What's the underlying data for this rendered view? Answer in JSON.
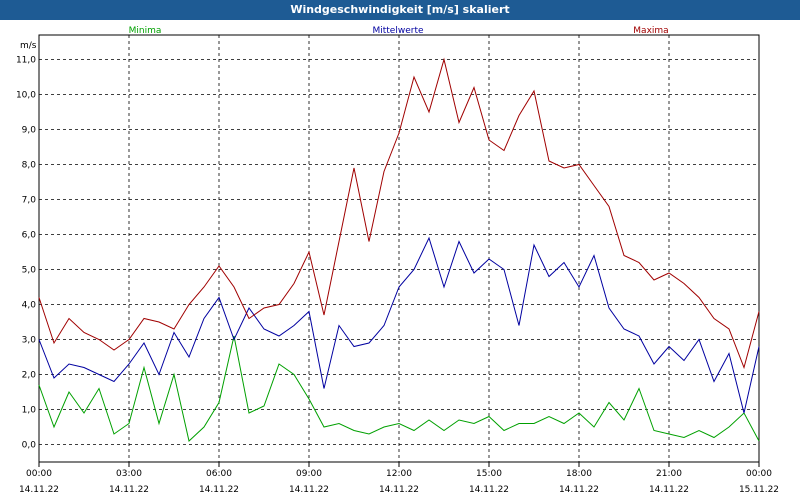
{
  "window": {
    "title": "Windgeschwindigkeit [m/s] skaliert"
  },
  "chart_data": {
    "type": "line",
    "title": "Windgeschwindigkeit [m/s] skaliert",
    "ylabel": "m/s",
    "ylim": [
      -0.5,
      11.7
    ],
    "yticks": [
      "0,0",
      "1,0",
      "2,0",
      "3,0",
      "4,0",
      "5,0",
      "6,0",
      "7,0",
      "8,0",
      "9,0",
      "10,0",
      "11,0"
    ],
    "xticks": [
      {
        "time": "00:00",
        "date": "14.11.22"
      },
      {
        "time": "03:00",
        "date": "14.11.22"
      },
      {
        "time": "06:00",
        "date": "14.11.22"
      },
      {
        "time": "09:00",
        "date": "14.11.22"
      },
      {
        "time": "12:00",
        "date": "14.11.22"
      },
      {
        "time": "15:00",
        "date": "14.11.22"
      },
      {
        "time": "18:00",
        "date": "14.11.22"
      },
      {
        "time": "21:00",
        "date": "14.11.22"
      },
      {
        "time": "00:00",
        "date": "15.11.22"
      }
    ],
    "grid": true,
    "legend_position": "top",
    "x_hours": [
      0,
      0.5,
      1,
      1.5,
      2,
      2.5,
      3,
      3.5,
      4,
      4.5,
      5,
      5.5,
      6,
      6.5,
      7,
      7.5,
      8,
      8.5,
      9,
      9.5,
      10,
      10.5,
      11,
      11.5,
      12,
      12.5,
      13,
      13.5,
      14,
      14.5,
      15,
      15.5,
      16,
      16.5,
      17,
      17.5,
      18,
      18.5,
      19,
      19.5,
      20,
      20.5,
      21,
      21.5,
      22,
      22.5,
      23,
      23.5,
      24
    ],
    "series": [
      {
        "name": "Minima",
        "color": "#00a000",
        "values": [
          1.7,
          0.5,
          1.5,
          0.9,
          1.6,
          0.3,
          0.6,
          2.2,
          0.6,
          2.0,
          0.1,
          0.5,
          1.2,
          3.1,
          0.9,
          1.1,
          2.3,
          2.0,
          1.3,
          0.5,
          0.6,
          0.4,
          0.3,
          0.5,
          0.6,
          0.4,
          0.7,
          0.4,
          0.7,
          0.6,
          0.8,
          0.4,
          0.6,
          0.6,
          0.8,
          0.6,
          0.9,
          0.5,
          1.2,
          0.7,
          1.6,
          0.4,
          0.3,
          0.2,
          0.4,
          0.2,
          0.5,
          0.9,
          0.1
        ]
      },
      {
        "name": "Mittelwerte",
        "color": "#0000a0",
        "values": [
          3.0,
          1.9,
          2.3,
          2.2,
          2.0,
          1.8,
          2.3,
          2.9,
          2.0,
          3.2,
          2.5,
          3.6,
          4.2,
          3.0,
          3.9,
          3.3,
          3.1,
          3.4,
          3.8,
          1.6,
          3.4,
          2.8,
          2.9,
          3.4,
          4.5,
          5.0,
          5.9,
          4.5,
          5.8,
          4.9,
          5.3,
          5.0,
          3.4,
          5.7,
          4.8,
          5.2,
          4.5,
          5.4,
          3.9,
          3.3,
          3.1,
          2.3,
          2.8,
          2.4,
          3.0,
          1.8,
          2.6,
          0.9,
          2.8
        ]
      },
      {
        "name": "Maxima",
        "color": "#a00000",
        "values": [
          4.2,
          2.9,
          3.6,
          3.2,
          3.0,
          2.7,
          3.0,
          3.6,
          3.5,
          3.3,
          4.0,
          4.5,
          5.1,
          4.5,
          3.6,
          3.9,
          4.0,
          4.6,
          5.5,
          3.7,
          5.8,
          7.9,
          5.8,
          7.8,
          8.9,
          10.5,
          9.5,
          11.0,
          9.2,
          10.2,
          8.7,
          8.4,
          9.4,
          10.1,
          8.1,
          7.9,
          8.0,
          7.4,
          6.8,
          5.4,
          5.2,
          4.7,
          4.9,
          4.6,
          4.2,
          3.6,
          3.3,
          2.2,
          3.8
        ]
      }
    ]
  }
}
